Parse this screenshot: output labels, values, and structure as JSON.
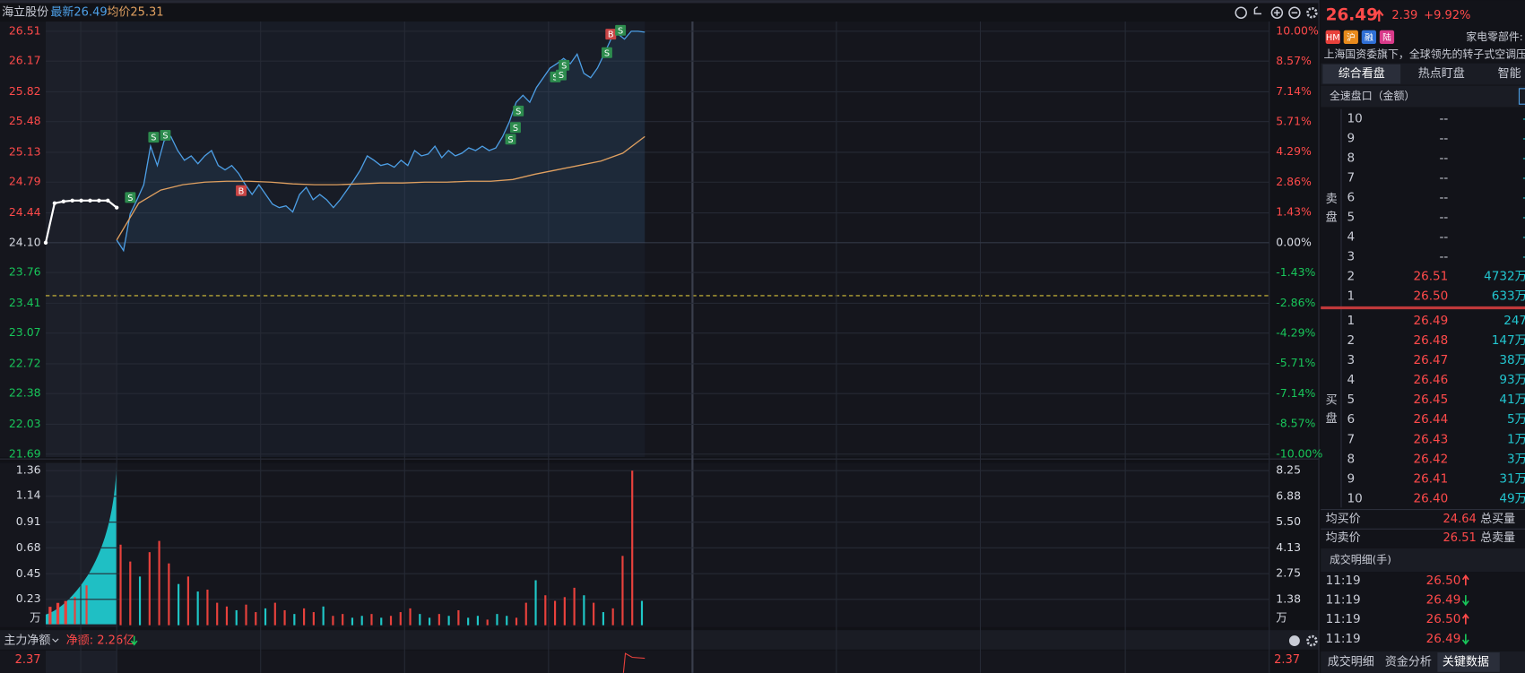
{
  "toolbar": {
    "name": "海立股份",
    "latest": "最新26.49",
    "avg": "均价25.31"
  },
  "price_chart": {
    "ylim": [
      21.69,
      26.51
    ],
    "yticks": [
      26.51,
      26.17,
      25.82,
      25.48,
      25.13,
      24.79,
      24.44,
      {
        "value": 24.1,
        "label": "24.10"
      },
      23.76,
      23.41,
      23.07,
      22.72,
      22.38,
      22.03,
      21.69
    ],
    "pctlim": [
      -10,
      10
    ],
    "pct_ticks": [
      {
        "value": 10,
        "label": "10.00%"
      },
      {
        "value": 8.57,
        "label": "8.57%"
      },
      {
        "value": 7.14,
        "label": "7.14%"
      },
      {
        "value": 5.71,
        "label": "5.71%"
      },
      {
        "value": 4.29,
        "label": "4.29%"
      },
      {
        "value": 2.86,
        "label": "2.86%"
      },
      {
        "value": 1.43,
        "label": "1.43%"
      },
      {
        "value": 0,
        "label": "0.00%"
      },
      {
        "value": -1.43,
        "label": "-1.43%"
      },
      {
        "value": -2.86,
        "label": "-2.86%"
      },
      {
        "value": -4.29,
        "label": "-4.29%"
      },
      {
        "value": -5.71,
        "label": "-5.71%"
      },
      {
        "value": -7.14,
        "label": "-7.14%"
      },
      {
        "value": -8.57,
        "label": "-8.57%"
      },
      {
        "value": -10,
        "label": "-10.00%"
      }
    ],
    "auction": [
      24.1,
      24.55,
      24.57,
      24.58,
      24.58,
      24.58,
      24.58,
      24.58,
      24.5
    ],
    "price": [
      24.13,
      24.01,
      24.43,
      24.59,
      24.76,
      25.2,
      24.98,
      25.26,
      25.31,
      25.15,
      25.04,
      25.09,
      25.0,
      25.09,
      25.15,
      24.98,
      24.93,
      24.98,
      24.89,
      24.76,
      24.65,
      24.76,
      24.65,
      24.54,
      24.5,
      24.52,
      24.45,
      24.65,
      24.73,
      24.59,
      24.65,
      24.59,
      24.5,
      24.59,
      24.7,
      24.81,
      24.93,
      25.09,
      25.04,
      24.98,
      25.0,
      24.96,
      25.04,
      24.98,
      25.15,
      25.09,
      25.11,
      25.2,
      25.07,
      25.15,
      25.09,
      25.12,
      25.18,
      25.15,
      25.2,
      25.15,
      25.18,
      25.31,
      25.48,
      25.7,
      25.78,
      25.7,
      25.87,
      25.98,
      26.09,
      26.14,
      26.2,
      26.14,
      26.25,
      26.03,
      25.98,
      26.09,
      26.25,
      26.42,
      26.48,
      26.42,
      26.51,
      26.51,
      26.5
    ],
    "avg_price": [
      24.13,
      24.55,
      24.7,
      24.76,
      24.79,
      24.8,
      24.8,
      24.79,
      24.77,
      24.76,
      24.76,
      24.77,
      24.78,
      24.78,
      24.79,
      24.79,
      24.8,
      24.8,
      24.82,
      24.88,
      24.93,
      24.98,
      25.03,
      25.12,
      25.31
    ],
    "line_color": "#4d9fe6",
    "avg_color": "#e0a060",
    "signals": [
      "S",
      "S",
      "S",
      "B",
      "S",
      "S",
      "S",
      "S",
      "S",
      "S",
      "S",
      "B",
      "S"
    ]
  },
  "volume_chart": {
    "ylim": [
      0,
      8.25
    ],
    "yticks": [
      8.25,
      6.88,
      {
        "value": 5.5,
        "label": "5.50"
      },
      4.13,
      2.75,
      1.38
    ],
    "left_ylim": [
      0,
      1.36
    ],
    "left_yticks": [
      1.36,
      1.14,
      0.91,
      0.68,
      0.45,
      0.23
    ],
    "unit": "万",
    "values": [
      4.3,
      3.4,
      2.6,
      3.9,
      4.5,
      3.3,
      2.2,
      2.6,
      1.8,
      1.9,
      1.2,
      1.0,
      0.8,
      1.1,
      0.7,
      0.9,
      1.2,
      0.8,
      0.6,
      0.9,
      0.7,
      1.0,
      0.5,
      0.6,
      0.4,
      0.5,
      0.6,
      0.4,
      0.5,
      0.7,
      0.9,
      0.6,
      0.4,
      0.6,
      0.5,
      0.8,
      0.4,
      0.5,
      0.3,
      0.6,
      0.5,
      0.4,
      1.2,
      2.4,
      1.6,
      1.3,
      1.5,
      2.0,
      1.6,
      1.2,
      0.7,
      0.9,
      3.7,
      8.25,
      1.3
    ],
    "colors": [
      "#e8413c",
      "#e8413c",
      "#1fc7c7",
      "#e8413c",
      "#e8413c",
      "#e8413c",
      "#1fc7c7",
      "#e8413c",
      "#1fc7c7",
      "#e8413c",
      "#e8413c",
      "#e8413c",
      "#1fc7c7",
      "#e8413c",
      "#e8413c",
      "#1fc7c7",
      "#e8413c",
      "#e8413c",
      "#1fc7c7",
      "#e8413c",
      "#e8413c",
      "#1fc7c7",
      "#e8413c",
      "#e8413c",
      "#1fc7c7",
      "#1fc7c7",
      "#e8413c",
      "#1fc7c7",
      "#e8413c",
      "#e8413c",
      "#e8413c",
      "#1fc7c7",
      "#1fc7c7",
      "#e8413c",
      "#1fc7c7",
      "#e8413c",
      "#1fc7c7",
      "#1fc7c7",
      "#e8413c",
      "#1fc7c7",
      "#1fc7c7",
      "#e8413c",
      "#e8413c",
      "#1fc7c7",
      "#e8413c",
      "#e8413c",
      "#e8413c",
      "#e8413c",
      "#1fc7c7",
      "#e8413c",
      "#1fc7c7",
      "#e8413c",
      "#e8413c",
      "#e8413c",
      "#1fc7c7"
    ]
  },
  "flow_bar": {
    "label": "主力净额",
    "net": "净额: 2.26亿",
    "left_value": "2.37",
    "right_value": "2.37"
  },
  "quote": {
    "price": "26.49",
    "change": "2.39",
    "pct": "+9.92%"
  },
  "tags": [
    "HM",
    "沪",
    "融",
    "陆"
  ],
  "industry": "家电零部件:",
  "ticker_text": "上海国资委旗下，全球领先的转子式空调压",
  "tabs": [
    "综合看盘",
    "热点盯盘",
    "智能"
  ],
  "depth_title": "全速盘口（金额）",
  "sell_label": [
    "卖",
    "盘"
  ],
  "buy_label": [
    "买",
    "盘"
  ],
  "asks": [
    [
      "10",
      "--",
      "-"
    ],
    [
      "9",
      "--",
      "-"
    ],
    [
      "8",
      "--",
      "-"
    ],
    [
      "7",
      "--",
      "-"
    ],
    [
      "6",
      "--",
      "-"
    ],
    [
      "5",
      "--",
      "-"
    ],
    [
      "4",
      "--",
      "-"
    ],
    [
      "3",
      "--",
      "-"
    ],
    [
      "2",
      "26.51",
      "4732万"
    ],
    [
      "1",
      "26.50",
      "633万"
    ]
  ],
  "bids": [
    [
      "1",
      "26.49",
      "247"
    ],
    [
      "2",
      "26.48",
      "147万"
    ],
    [
      "3",
      "26.47",
      "38万"
    ],
    [
      "4",
      "26.46",
      "93万"
    ],
    [
      "5",
      "26.45",
      "41万"
    ],
    [
      "6",
      "26.44",
      "5万"
    ],
    [
      "7",
      "26.43",
      "1万"
    ],
    [
      "8",
      "26.42",
      "3万"
    ],
    [
      "9",
      "26.41",
      "31万"
    ],
    [
      "10",
      "26.40",
      "49万"
    ]
  ],
  "summary": [
    [
      "均买价",
      "24.64",
      "总买量"
    ],
    [
      "均卖价",
      "26.51",
      "总卖量"
    ]
  ],
  "trades_title": "成交明细(手)",
  "trades": [
    {
      "time": "11:19",
      "price": "26.50",
      "dir": "up"
    },
    {
      "time": "11:19",
      "price": "26.49",
      "dir": "down"
    },
    {
      "time": "11:19",
      "price": "26.50",
      "dir": "up"
    },
    {
      "time": "11:19",
      "price": "26.49",
      "dir": "down"
    }
  ],
  "bottom_tabs": [
    "成交明细",
    "资金分析",
    "关键数据"
  ]
}
